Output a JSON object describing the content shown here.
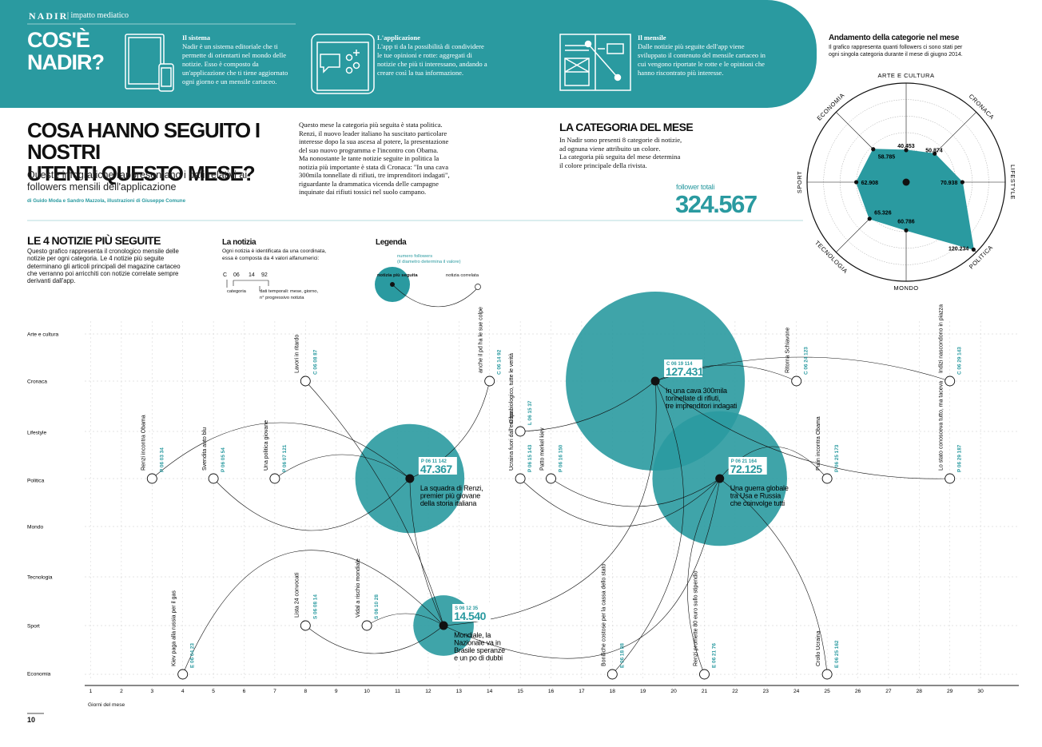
{
  "colors": {
    "teal": "#2a9aa0",
    "teal_dark": "#1e7f85",
    "text": "#111111",
    "grid": "#bbbbbb"
  },
  "header": {
    "brand": "NADIR",
    "section": "| impatto mediatico",
    "cos_e": [
      "COS'È",
      "NADIR?"
    ],
    "blocks": [
      {
        "icon": "tablet-phone-icon",
        "title": "Il sistema",
        "text": "Nadir è un sistema editoriale che ti permette di orientarti nel mondo delle notizie. Esso è composto da un'applicazione che ti tiene aggiornato ogni giorno e un mensile cartaceo."
      },
      {
        "icon": "smartphone-chat-icon",
        "title": "L'applicazione",
        "text": "L'app ti da la possibilità di condividere le tue opinioni e rotte: aggregati di notizie che più ti interessano, andando a creare così la tua informazione."
      },
      {
        "icon": "magazine-icon",
        "title": "Il mensile",
        "text": "Dalle notizie più seguite dell'app viene sviluppato il contenuto del mensile cartaceo in cui vengono riportate le rotte e le opinioni che hanno riscontrato più interesse."
      }
    ]
  },
  "intro": {
    "title": [
      "COSA HANNO SEGUITO I NOSTRI",
      "UTENTI QUESTO MESE?"
    ],
    "subtitle": [
      "Queste infografiche rappresentano i dati relativi ai",
      "followers mensili dell'applicazione"
    ],
    "credits": "di Guido Moda e Sandro Mazzola, illustrazioni di Giuseppe Comune",
    "body": [
      "Questo mese  la categoria più seguita è stata politica.",
      "Renzi, il nuovo leader italiano ha suscitato particolare",
      "interesse dopo la sua ascesa al potere, la presentazione",
      "del suo nuovo programma e l'incontro con Obama.",
      "Ma nonostante le tante notizie seguite in politica la",
      "notizia più importante è stata di Cronaca: \"In una cava",
      "300mila tonnellate di rifiuti, tre imprenditori indagati\",",
      "riguardante la drammatica vicenda delle campagne",
      "inquinate dai rifiuti tossici nel suolo campano."
    ]
  },
  "categoria_mese": {
    "title": "LA CATEGORIA DEL MESE",
    "text": [
      "In Nadir sono presenti 8 categorie di notizie,",
      "ad ognuna viene attribuito un colore.",
      "La categoria più seguita del mese determina",
      "il colore principale della rivista."
    ],
    "follower_label": "follower totali",
    "follower_value": "324.567"
  },
  "radar": {
    "title": "Andamento della categorie nel mese",
    "subtitle": [
      "Il grafico rappresenta quanti followers ci sono stati per",
      "ogni singola categoria durante il mese di giugno 2014."
    ]
  },
  "notizie": {
    "title": "LE 4 NOTIZIE PIÙ SEGUITE",
    "text": [
      "Questo grafico rappresenta il cronologico mensile delle",
      "notizie per ogni categoria. Le 4 notizie più seguite",
      "determinano gli articoli principali del magazine cartaceo",
      "che verranno poi arricchiti con notizie correlate sempre",
      "derivanti dall'app."
    ],
    "la_notizia_title": "La notizia",
    "la_notizia_text": [
      "Ogni notizia è identificata da una coordinata,",
      "essa è composta da 4 valori alfanumerici:"
    ],
    "code_parts": [
      "C",
      "06",
      "14",
      "92"
    ],
    "code_cat": "categoria",
    "code_dati": [
      "dati temporali: mese, giorno,",
      "n° progressivo notizia"
    ],
    "legenda_title": "Legenda",
    "legenda_followers": [
      "numero followers",
      "(il diametro determina il valore)"
    ],
    "legenda_top": "notizia più seguita",
    "legenda_corr": "notizia correlata"
  },
  "footer": {
    "page_number": "10"
  },
  "chart_data": [
    {
      "type": "radar",
      "title": "Andamento della categorie nel mese",
      "categories": [
        "ARTE E CULTURA",
        "CRONACA",
        "LIFESTYLE",
        "POLITICA",
        "MONDO",
        "TECNOLOGIA",
        "SPORT",
        "ECONOMIA"
      ],
      "values": [
        40453,
        50874,
        70938,
        120234,
        60786,
        65326,
        62908,
        58785
      ],
      "value_labels": [
        "40.453",
        "50.874",
        "70.938",
        "120.234",
        "60.786",
        "65.326",
        "62.908",
        "58.785"
      ],
      "rmax": 125000
    },
    {
      "type": "scatter",
      "xlabel": "Giorni del mese",
      "x_ticks": [
        1,
        2,
        3,
        4,
        5,
        6,
        7,
        8,
        9,
        10,
        11,
        12,
        13,
        14,
        15,
        16,
        17,
        18,
        19,
        20,
        21,
        22,
        23,
        24,
        25,
        26,
        27,
        28,
        29,
        30
      ],
      "categories": [
        "Arte e cultura",
        "Cronaca",
        "Lifestyle",
        "Politica",
        "Mondo",
        "Tecnologia",
        "Sport",
        "Economia"
      ],
      "top_news": [
        {
          "code": "P 06 11 142",
          "value": "47.367",
          "followers": 47367,
          "day": 11.4,
          "cat": "Politica",
          "lines": [
            "La squadra di Renzi,",
            "premier più giovane",
            "della storia italiana"
          ]
        },
        {
          "code": "C 06 19 114",
          "value": "127.431",
          "followers": 127431,
          "day": 19.4,
          "cat": "Cronaca",
          "lines": [
            "In una cava 300mila",
            "tonnellate di rifiuti,",
            "tre imprenditori indagati"
          ]
        },
        {
          "code": "P 06 21 164",
          "value": "72.125",
          "followers": 72125,
          "day": 21.5,
          "cat": "Politica",
          "lines": [
            "Una guerra globale",
            "tra Usa e Russia",
            "che coinvolge tutti"
          ]
        },
        {
          "code": "S 06 12 35",
          "value": "14.540",
          "followers": 14540,
          "day": 12.5,
          "cat": "Sport",
          "lines": [
            "Mondiale, la",
            "Nazionale va in",
            "Brasile speranze",
            "e un po di dubbi"
          ]
        }
      ],
      "related": [
        {
          "day": 3,
          "cat": "Politica",
          "title": "Renzi incontra Obama",
          "code": "P 06 03 34"
        },
        {
          "day": 5,
          "cat": "Politica",
          "title": "Svendita auto blu",
          "code": "P 06 05 54"
        },
        {
          "day": 7,
          "cat": "Politica",
          "title": "Una politica giovane",
          "code": "P 06 07 121"
        },
        {
          "day": 8,
          "cat": "Cronaca",
          "title": "Lavori in ritardo",
          "code": "C 06 08 87"
        },
        {
          "day": 14,
          "cat": "Cronaca",
          "title": "anche il pd ha le sue colpe",
          "code": "C 06 14 92"
        },
        {
          "day": 4,
          "cat": "Economia",
          "title": "Kiev paga alla russia per il gas",
          "code": "E 06 04 23"
        },
        {
          "day": 8,
          "cat": "Sport",
          "title": "Lista 24 convocati",
          "code": "S 06 08 14"
        },
        {
          "day": 10,
          "cat": "Sport",
          "title": "Vidal a rischio mondiale",
          "code": "S 06 10 28"
        },
        {
          "day": 15,
          "cat": "Lifestyle",
          "title": "Cibo biologico, tutte le verità",
          "code": "L 06 15 37"
        },
        {
          "day": 15,
          "cat": "Politica",
          "title": "Ucraina fuori dall'europa",
          "code": "P 06 15 143"
        },
        {
          "day": 16,
          "cat": "Politica",
          "title": "Patto merkel kiev",
          "code": "P 06 16 150"
        },
        {
          "day": 18,
          "cat": "Economia",
          "title": "Bonifiche costose per la cassa dello stato",
          "code": "E 06 18 88"
        },
        {
          "day": 21,
          "cat": "Economia",
          "title": "Renzi promette 80 euro sullo stipendio",
          "code": "E 06 21 76"
        },
        {
          "day": 24,
          "cat": "Cronaca",
          "title": "Ritorna Schiavone",
          "code": "C 06 24 123"
        },
        {
          "day": 25,
          "cat": "Politica",
          "title": "Putin incontra Obama",
          "code": "P 06 25 173"
        },
        {
          "day": 25,
          "cat": "Economia",
          "title": "Crollo Ucraina",
          "code": "E 06 25 162"
        },
        {
          "day": 29,
          "cat": "Cronaca",
          "title": "Indizi nascondono in piazza",
          "code": "C 06 29 143"
        },
        {
          "day": 29,
          "cat": "Politica",
          "title": "Lo stato conosceva tutto, ma taceva",
          "code": "P 06 29 187"
        }
      ]
    }
  ]
}
